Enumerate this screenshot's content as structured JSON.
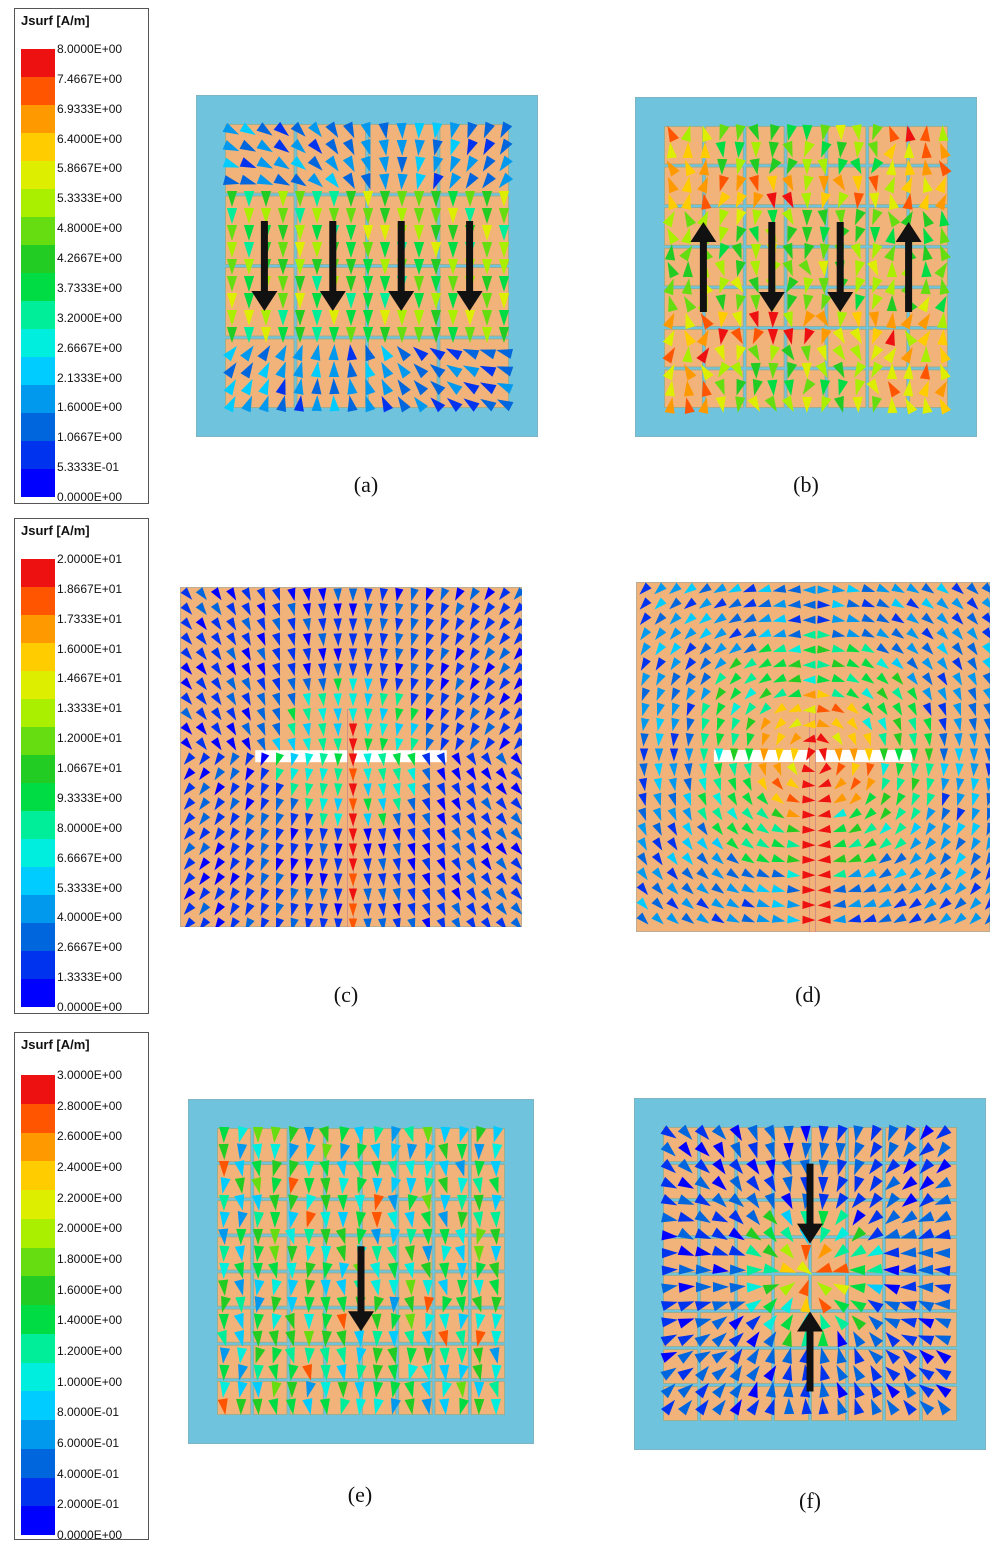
{
  "palette": [
    "#0000ff",
    "#0033ee",
    "#0066dd",
    "#0099ee",
    "#00ccff",
    "#00eedd",
    "#00ee99",
    "#00dd44",
    "#22cc22",
    "#66dd11",
    "#aaee00",
    "#ddee00",
    "#ffcc00",
    "#ff9900",
    "#ff5500",
    "#ee1111"
  ],
  "colors": {
    "substrate": "#6fc3dd",
    "patch": "#f2b37a",
    "arrow_overlay": "#111111"
  },
  "legends": [
    {
      "title": "Jsurf [A/m]",
      "labels": [
        "8.0000E+00",
        "7.4667E+00",
        "6.9333E+00",
        "6.4000E+00",
        "5.8667E+00",
        "5.3333E+00",
        "4.8000E+00",
        "4.2667E+00",
        "3.7333E+00",
        "3.2000E+00",
        "2.6667E+00",
        "2.1333E+00",
        "1.6000E+00",
        "1.0667E+00",
        "5.3333E-01",
        "0.0000E+00"
      ]
    },
    {
      "title": "Jsurf [A/m]",
      "labels": [
        "2.0000E+01",
        "1.8667E+01",
        "1.7333E+01",
        "1.6000E+01",
        "1.4667E+01",
        "1.3333E+01",
        "1.2000E+01",
        "1.0667E+01",
        "9.3333E+00",
        "8.0000E+00",
        "6.6667E+00",
        "5.3333E+00",
        "4.0000E+00",
        "2.6667E+00",
        "1.3333E+00",
        "0.0000E+00"
      ]
    },
    {
      "title": "Jsurf [A/m]",
      "labels": [
        "3.0000E+00",
        "2.8000E+00",
        "2.6000E+00",
        "2.4000E+00",
        "2.2000E+00",
        "2.0000E+00",
        "1.8000E+00",
        "1.6000E+00",
        "1.4000E+00",
        "1.2000E+00",
        "1.0000E+00",
        "8.0000E-01",
        "6.0000E-01",
        "4.0000E-01",
        "2.0000E-01",
        "0.0000E+00"
      ]
    }
  ],
  "panels": [
    {
      "label": "(a)",
      "type": "metasurface-4x4",
      "overlay_arrows": [
        "down",
        "down",
        "down",
        "down"
      ],
      "dominant_level": "mixed"
    },
    {
      "label": "(b)",
      "type": "metasurface-7x7",
      "overlay_arrows": [
        "up",
        "down",
        "down",
        "up"
      ],
      "dominant_level": "high"
    },
    {
      "label": "(c)",
      "type": "slot-antenna",
      "overlay_arrows": [],
      "dominant_level": "low"
    },
    {
      "label": "(d)",
      "type": "slot-antenna",
      "overlay_arrows": [],
      "dominant_level": "mixed"
    },
    {
      "label": "(e)",
      "type": "metasurface-8x8",
      "overlay_arrows": [
        "down"
      ],
      "dominant_level": "mixed"
    },
    {
      "label": "(f)",
      "type": "metasurface-8x8",
      "overlay_arrows": [
        "down",
        "up"
      ],
      "dominant_level": "low"
    }
  ]
}
